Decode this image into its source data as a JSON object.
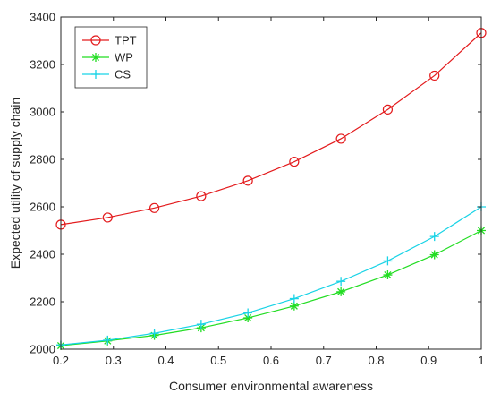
{
  "chart_data": {
    "type": "line",
    "title": "",
    "xlabel": "Consumer environmental awareness",
    "ylabel": "Expected utility of supply chain",
    "xlim": [
      0.2,
      1
    ],
    "ylim": [
      2000,
      3400
    ],
    "xticks": [
      0.2,
      0.3,
      0.4,
      0.5,
      0.6,
      0.7,
      0.8,
      0.9,
      1
    ],
    "xtick_labels": [
      "0.2",
      "0.3",
      "0.4",
      "0.5",
      "0.6",
      "0.7",
      "0.8",
      "0.9",
      "1"
    ],
    "yticks": [
      2000,
      2200,
      2400,
      2600,
      2800,
      3000,
      3200,
      3400
    ],
    "ytick_labels": [
      "2000",
      "2200",
      "2400",
      "2600",
      "2800",
      "3000",
      "3200",
      "3400"
    ],
    "grid": false,
    "legend_position": "top-left",
    "x": [
      0.2,
      0.289,
      0.378,
      0.467,
      0.556,
      0.644,
      0.733,
      0.822,
      0.911,
      1.0
    ],
    "series": [
      {
        "name": "TPT",
        "color": "#e31a1c",
        "marker": "circle",
        "values": [
          2525,
          2555,
          2595,
          2645,
          2710,
          2790,
          2887,
          3010,
          3153,
          3333
        ]
      },
      {
        "name": "WP",
        "color": "#22dd22",
        "marker": "asterisk",
        "values": [
          2015,
          2035,
          2058,
          2090,
          2132,
          2182,
          2242,
          2313,
          2398,
          2500
        ]
      },
      {
        "name": "CS",
        "color": "#19d3e6",
        "marker": "plus",
        "values": [
          2018,
          2038,
          2067,
          2105,
          2153,
          2213,
          2286,
          2372,
          2475,
          2600
        ]
      }
    ]
  }
}
